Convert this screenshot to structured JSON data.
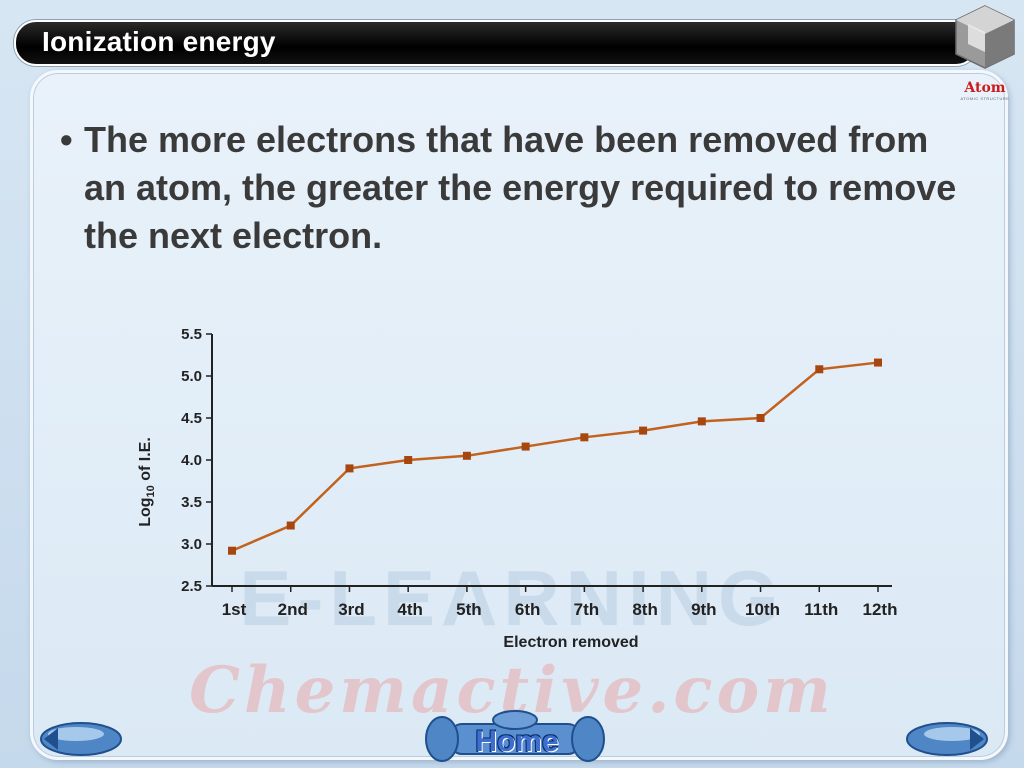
{
  "slide": {
    "title": "Ionization energy",
    "bullet": "The more electrons that have been removed from an atom, the greater the energy required to remove the next electron.",
    "bullet_symbol": "•"
  },
  "logo": {
    "label": "Atom",
    "sublabel": "ATOMIC STRUCTURE"
  },
  "watermark": {
    "line1": "E-LEARNING",
    "line2": "Chemactive.com"
  },
  "navigation": {
    "home_label": "Home",
    "prev_icon": "arrow-left-icon",
    "next_icon": "arrow-right-icon"
  },
  "colors": {
    "series": "#c2621c",
    "marker": "#a8460f",
    "axis": "#222222",
    "title_bar": "#000000",
    "text": "#3a3a3a"
  },
  "chart_data": {
    "type": "line",
    "categories": [
      "1st",
      "2nd",
      "3rd",
      "4th",
      "5th",
      "6th",
      "7th",
      "8th",
      "9th",
      "10th",
      "11th",
      "12th"
    ],
    "series": [
      {
        "values": [
          2.92,
          3.22,
          3.9,
          4.0,
          4.05,
          4.16,
          4.27,
          4.35,
          4.46,
          4.5,
          5.08,
          5.16
        ]
      }
    ],
    "xlabel": "Electron removed",
    "ylabel": "Log10 of I.E.",
    "ylabel_main": "Log",
    "ylabel_sub": "10",
    "ylabel_tail": " of I.E.",
    "ylim": [
      2.5,
      5.5
    ],
    "yticks": [
      "2.5",
      "3.0",
      "3.5",
      "4.0",
      "4.5",
      "5.0",
      "5.5"
    ],
    "grid": false
  }
}
